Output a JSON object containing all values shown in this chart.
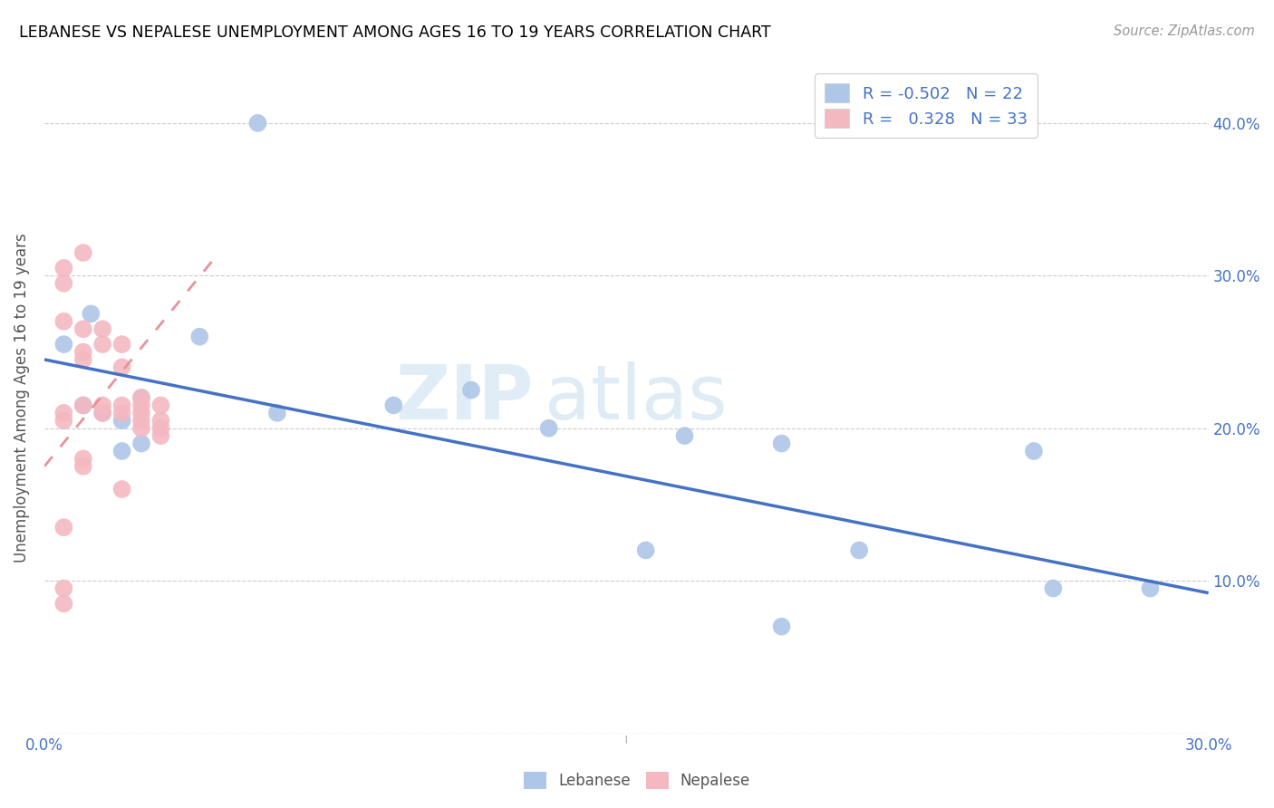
{
  "title": "LEBANESE VS NEPALESE UNEMPLOYMENT AMONG AGES 16 TO 19 YEARS CORRELATION CHART",
  "source": "Source: ZipAtlas.com",
  "ylabel": "Unemployment Among Ages 16 to 19 years",
  "xlim": [
    0.0,
    0.3
  ],
  "ylim": [
    0.0,
    0.44
  ],
  "legend_lb_r": "-0.502",
  "legend_lb_n": "22",
  "legend_np_r": "0.328",
  "legend_np_n": "33",
  "lebanese_color": "#aec6e8",
  "nepalese_color": "#f4b8c1",
  "trend_lb_color": "#4472c4",
  "trend_np_color": "#e8929a",
  "watermark_zip": "ZIP",
  "watermark_atlas": "atlas",
  "lebanese_x": [
    0.055,
    0.012,
    0.04,
    0.005,
    0.01,
    0.015,
    0.02,
    0.025,
    0.06,
    0.09,
    0.11,
    0.13,
    0.165,
    0.19,
    0.255,
    0.21,
    0.285,
    0.19,
    0.155,
    0.26,
    0.025,
    0.02
  ],
  "lebanese_y": [
    0.4,
    0.275,
    0.26,
    0.255,
    0.215,
    0.21,
    0.205,
    0.22,
    0.21,
    0.215,
    0.225,
    0.2,
    0.195,
    0.19,
    0.185,
    0.12,
    0.095,
    0.07,
    0.12,
    0.095,
    0.19,
    0.185
  ],
  "nepalese_x": [
    0.005,
    0.005,
    0.005,
    0.005,
    0.005,
    0.005,
    0.005,
    0.01,
    0.01,
    0.01,
    0.01,
    0.01,
    0.01,
    0.015,
    0.015,
    0.015,
    0.015,
    0.02,
    0.02,
    0.02,
    0.02,
    0.02,
    0.025,
    0.025,
    0.025,
    0.025,
    0.025,
    0.03,
    0.03,
    0.03,
    0.03,
    0.005,
    0.01
  ],
  "nepalese_y": [
    0.305,
    0.295,
    0.27,
    0.21,
    0.205,
    0.095,
    0.085,
    0.315,
    0.265,
    0.25,
    0.245,
    0.215,
    0.18,
    0.265,
    0.255,
    0.215,
    0.21,
    0.255,
    0.24,
    0.215,
    0.21,
    0.16,
    0.22,
    0.215,
    0.21,
    0.205,
    0.2,
    0.215,
    0.205,
    0.2,
    0.195,
    0.135,
    0.175
  ],
  "trend_lb_x0": 0.0,
  "trend_lb_y0": 0.245,
  "trend_lb_x1": 0.3,
  "trend_lb_y1": 0.092,
  "trend_np_x0": 0.0,
  "trend_np_y0": 0.175,
  "trend_np_x1": 0.045,
  "trend_np_y1": 0.315
}
